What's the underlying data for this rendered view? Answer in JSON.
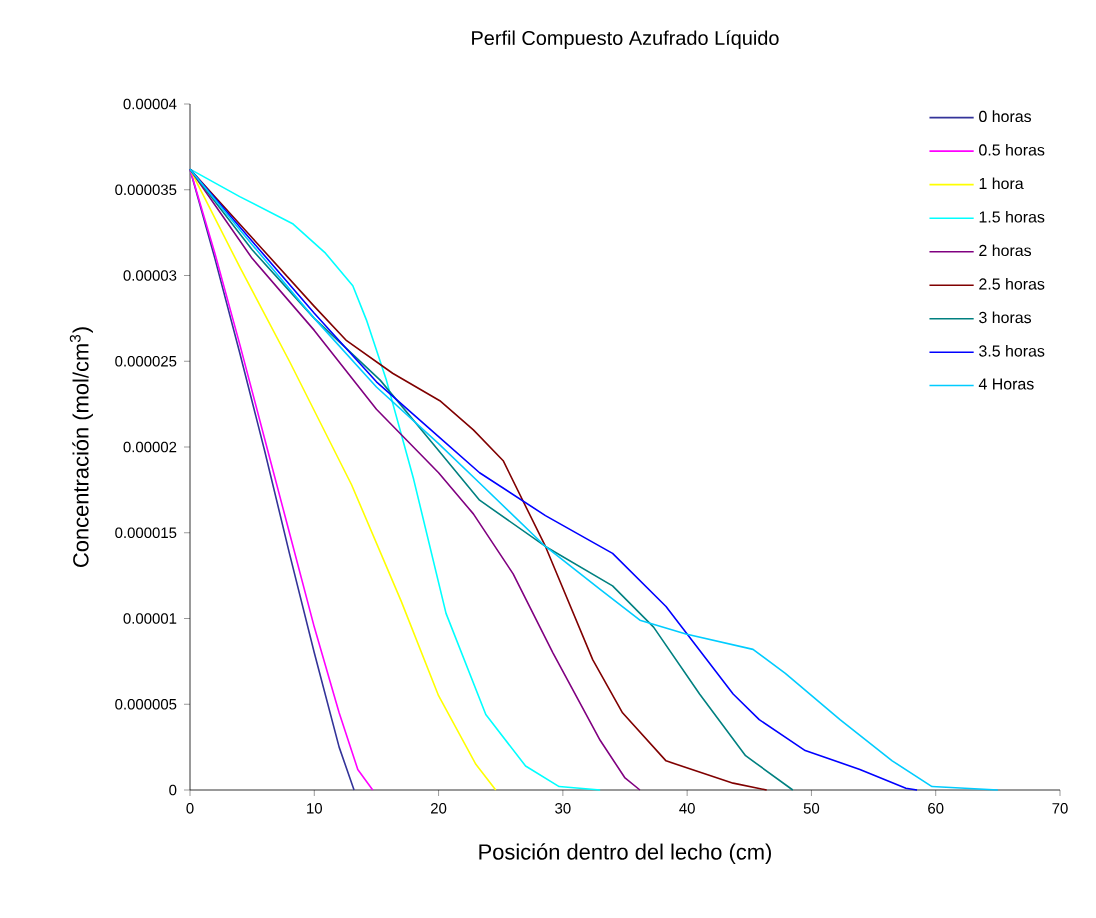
{
  "chart_data": {
    "type": "line",
    "title": "Perfil Compuesto Azufrado Líquido",
    "xlabel": "Posición dentro del lecho (cm)",
    "ylabel": "Concentración (mol/cm$^{3}$)",
    "xlim": [
      0,
      70
    ],
    "xticks": [
      0,
      10,
      20,
      30,
      40,
      50,
      60,
      70
    ],
    "ylim": [
      0,
      4e-05
    ],
    "yticks": [
      0,
      {
        "value": 5e-06,
        "label": "0.000005"
      },
      {
        "value": 1e-05,
        "label": "0.00001"
      },
      {
        "value": 1.5e-05,
        "label": "0.000015"
      },
      {
        "value": 2e-05,
        "label": "0.00002"
      },
      {
        "value": 2.5e-05,
        "label": "0.000025"
      },
      {
        "value": 3e-05,
        "label": "0.00003"
      },
      {
        "value": 3.5e-05,
        "label": "0.000035"
      },
      {
        "value": 4e-05,
        "label": "0.00004"
      }
    ],
    "grid": false,
    "legend": "top right",
    "series": [
      {
        "name": "0 horas",
        "color": "#333399",
        "x": [
          0,
          2,
          4,
          6,
          8,
          10,
          12,
          13.2
        ],
        "values": [
          3.62e-05,
          3.1e-05,
          2.55e-05,
          1.98e-05,
          1.38e-05,
          8e-06,
          2.5e-06,
          0
        ]
      },
      {
        "name": "0.5 horas",
        "color": "#ff00ff",
        "x": [
          0,
          2,
          4,
          6,
          8,
          10,
          12,
          13.5,
          14.7
        ],
        "values": [
          3.62e-05,
          3.13e-05,
          2.6e-05,
          2.05e-05,
          1.5e-05,
          9.5e-06,
          4.5e-06,
          1.2e-06,
          0
        ]
      },
      {
        "name": "1 hora",
        "color": "#ffff00",
        "x": [
          0,
          4,
          8,
          13,
          17,
          20,
          23,
          24.6
        ],
        "values": [
          3.62e-05,
          3.05e-05,
          2.5e-05,
          1.78e-05,
          1.1e-05,
          5.5e-06,
          1.5e-06,
          0
        ]
      },
      {
        "name": "1.5 horas",
        "color": "#00ffff",
        "x": [
          0,
          4,
          8.3,
          10.9,
          13.1,
          14.2,
          15.8,
          18,
          20.6,
          23.8,
          27,
          29.7,
          33
        ],
        "values": [
          3.62e-05,
          3.46e-05,
          3.3e-05,
          3.13e-05,
          2.94e-05,
          2.74e-05,
          2.39e-05,
          1.81e-05,
          1.03e-05,
          4.4e-06,
          1.4e-06,
          2e-07,
          0
        ]
      },
      {
        "name": "2 horas",
        "color": "#800080",
        "x": [
          0,
          5,
          10,
          15,
          20,
          22.8,
          26,
          29.2,
          33,
          35,
          36.2
        ],
        "values": [
          3.62e-05,
          3.1e-05,
          2.68e-05,
          2.22e-05,
          1.85e-05,
          1.61e-05,
          1.26e-05,
          8e-06,
          2.9e-06,
          7e-07,
          0
        ]
      },
      {
        "name": "2.5 horas",
        "color": "#800000",
        "x": [
          0,
          5,
          10,
          12.6,
          16.3,
          20.1,
          22.8,
          25.2,
          28.6,
          32.4,
          34.8,
          38.3,
          43.7,
          46.4
        ],
        "values": [
          3.62e-05,
          3.22e-05,
          2.82e-05,
          2.62e-05,
          2.43e-05,
          2.27e-05,
          2.1e-05,
          1.92e-05,
          1.42e-05,
          7.6e-06,
          4.5e-06,
          1.7e-06,
          4e-07,
          0
        ]
      },
      {
        "name": "3 horas",
        "color": "#008080",
        "x": [
          0,
          5,
          10,
          15.3,
          20,
          23.3,
          28.6,
          34,
          37.3,
          41,
          44.7,
          48.5
        ],
        "values": [
          3.62e-05,
          3.15e-05,
          2.75e-05,
          2.39e-05,
          1.98e-05,
          1.69e-05,
          1.42e-05,
          1.19e-05,
          9.5e-06,
          5.6e-06,
          2e-06,
          0
        ]
      },
      {
        "name": "3.5 horas",
        "color": "#0000ff",
        "x": [
          0,
          5,
          10,
          15,
          20,
          23.3,
          28.6,
          34,
          38.3,
          43.7,
          45.8,
          49.5,
          53.9,
          57.6,
          58.5
        ],
        "values": [
          3.62e-05,
          3.2e-05,
          2.78e-05,
          2.38e-05,
          2.06e-05,
          1.85e-05,
          1.6e-05,
          1.38e-05,
          1.07e-05,
          5.6e-06,
          4.1e-06,
          2.3e-06,
          1.2e-06,
          1e-07,
          0
        ]
      },
      {
        "name": "4 Horas",
        "color": "#00ccff",
        "x": [
          0,
          5,
          10,
          15,
          20,
          23.3,
          28.6,
          33,
          36.2,
          39.9,
          45.3,
          47.9,
          52.3,
          56.5,
          59.7,
          65
        ],
        "values": [
          3.62e-05,
          3.18e-05,
          2.75e-05,
          2.35e-05,
          2.02e-05,
          1.79e-05,
          1.42e-05,
          1.17e-05,
          9.9e-06,
          9.1e-06,
          8.2e-06,
          6.8e-06,
          4.1e-06,
          1.7e-06,
          2e-07,
          0
        ]
      }
    ]
  }
}
